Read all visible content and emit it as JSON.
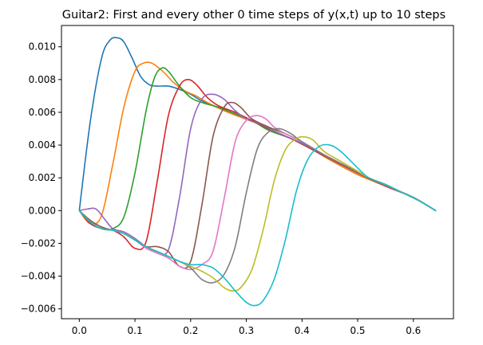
{
  "chart_data": {
    "type": "line",
    "title": "Guitar2: First and every other 0 time steps of y(x,t) up to 10 steps",
    "xlabel": "",
    "ylabel": "",
    "xlim": [
      -0.032,
      0.672
    ],
    "ylim": [
      -0.0066,
      0.0113
    ],
    "x_ticks": [
      0.0,
      0.1,
      0.2,
      0.3,
      0.4,
      0.5,
      0.6
    ],
    "x_tick_labels": [
      "0.0",
      "0.1",
      "0.2",
      "0.3",
      "0.4",
      "0.5",
      "0.6"
    ],
    "y_ticks": [
      -0.006,
      -0.004,
      -0.002,
      0.0,
      0.002,
      0.004,
      0.006,
      0.008,
      0.01
    ],
    "y_tick_labels": [
      "−0.006",
      "−0.004",
      "−0.002",
      "0.000",
      "0.002",
      "0.004",
      "0.006",
      "0.008",
      "0.010"
    ],
    "grid": false,
    "series": [
      {
        "color": "#1f77b4",
        "points": [
          [
            0.0,
            0.0
          ],
          [
            0.02,
            0.0055
          ],
          [
            0.04,
            0.0093
          ],
          [
            0.055,
            0.0104
          ],
          [
            0.068,
            0.01055
          ],
          [
            0.08,
            0.0103
          ],
          [
            0.095,
            0.0093
          ],
          [
            0.11,
            0.0082
          ],
          [
            0.125,
            0.0077
          ],
          [
            0.14,
            0.0076
          ],
          [
            0.16,
            0.0076
          ],
          [
            0.18,
            0.0074
          ],
          [
            0.2,
            0.0071
          ],
          [
            0.22,
            0.0067
          ],
          [
            0.25,
            0.0063
          ],
          [
            0.28,
            0.0059
          ],
          [
            0.3,
            0.0056
          ],
          [
            0.33,
            0.0052
          ],
          [
            0.36,
            0.0047
          ],
          [
            0.4,
            0.0041
          ],
          [
            0.45,
            0.0031
          ],
          [
            0.5,
            0.0022
          ],
          [
            0.55,
            0.0015
          ],
          [
            0.6,
            0.0008
          ],
          [
            0.64,
            0.0
          ]
        ]
      },
      {
        "color": "#ff7f0e",
        "points": [
          [
            0.0,
            0.0
          ],
          [
            0.02,
            -0.0008
          ],
          [
            0.04,
            -0.0003
          ],
          [
            0.06,
            0.0028
          ],
          [
            0.08,
            0.0063
          ],
          [
            0.1,
            0.0085
          ],
          [
            0.115,
            0.009
          ],
          [
            0.13,
            0.009
          ],
          [
            0.15,
            0.0085
          ],
          [
            0.17,
            0.0078
          ],
          [
            0.19,
            0.0073
          ],
          [
            0.21,
            0.007
          ],
          [
            0.23,
            0.0066
          ],
          [
            0.26,
            0.0061
          ],
          [
            0.29,
            0.0057
          ],
          [
            0.32,
            0.0053
          ],
          [
            0.35,
            0.0048
          ],
          [
            0.4,
            0.0041
          ],
          [
            0.45,
            0.0031
          ],
          [
            0.5,
            0.0022
          ],
          [
            0.55,
            0.0015
          ],
          [
            0.6,
            0.0008
          ],
          [
            0.64,
            0.0
          ]
        ]
      },
      {
        "color": "#2ca02c",
        "points": [
          [
            0.0,
            0.0
          ],
          [
            0.02,
            -0.0007
          ],
          [
            0.04,
            -0.0011
          ],
          [
            0.06,
            -0.0011
          ],
          [
            0.08,
            -0.0004
          ],
          [
            0.1,
            0.0023
          ],
          [
            0.12,
            0.0061
          ],
          [
            0.135,
            0.0081
          ],
          [
            0.148,
            0.0087
          ],
          [
            0.16,
            0.0085
          ],
          [
            0.18,
            0.0076
          ],
          [
            0.2,
            0.0069
          ],
          [
            0.22,
            0.0066
          ],
          [
            0.25,
            0.0063
          ],
          [
            0.28,
            0.0059
          ],
          [
            0.31,
            0.0055
          ],
          [
            0.34,
            0.0049
          ],
          [
            0.38,
            0.0044
          ],
          [
            0.42,
            0.0037
          ],
          [
            0.46,
            0.003
          ],
          [
            0.5,
            0.0023
          ],
          [
            0.55,
            0.0015
          ],
          [
            0.6,
            0.0008
          ],
          [
            0.64,
            0.0
          ]
        ]
      },
      {
        "color": "#d62728",
        "points": [
          [
            0.0,
            0.0
          ],
          [
            0.02,
            -0.0008
          ],
          [
            0.04,
            -0.0011
          ],
          [
            0.06,
            -0.0012
          ],
          [
            0.08,
            -0.0016
          ],
          [
            0.1,
            -0.0023
          ],
          [
            0.12,
            -0.0019
          ],
          [
            0.14,
            0.0018
          ],
          [
            0.16,
            0.0058
          ],
          [
            0.18,
            0.0076
          ],
          [
            0.195,
            0.008
          ],
          [
            0.21,
            0.0077
          ],
          [
            0.23,
            0.0069
          ],
          [
            0.25,
            0.0064
          ],
          [
            0.28,
            0.006
          ],
          [
            0.31,
            0.0055
          ],
          [
            0.34,
            0.005
          ],
          [
            0.38,
            0.0044
          ],
          [
            0.42,
            0.0037
          ],
          [
            0.46,
            0.003
          ],
          [
            0.5,
            0.0023
          ],
          [
            0.55,
            0.0015
          ],
          [
            0.6,
            0.0008
          ],
          [
            0.64,
            0.0
          ]
        ]
      },
      {
        "color": "#9467bd",
        "points": [
          [
            0.0,
            0.0
          ],
          [
            0.015,
            0.0001
          ],
          [
            0.03,
            0.0001
          ],
          [
            0.045,
            -0.0005
          ],
          [
            0.06,
            -0.0011
          ],
          [
            0.08,
            -0.0013
          ],
          [
            0.1,
            -0.0017
          ],
          [
            0.12,
            -0.0022
          ],
          [
            0.14,
            -0.0025
          ],
          [
            0.16,
            -0.0024
          ],
          [
            0.18,
            0.0008
          ],
          [
            0.2,
            0.005
          ],
          [
            0.22,
            0.0068
          ],
          [
            0.24,
            0.0071
          ],
          [
            0.26,
            0.0068
          ],
          [
            0.28,
            0.0061
          ],
          [
            0.3,
            0.0056
          ],
          [
            0.33,
            0.0052
          ],
          [
            0.36,
            0.0047
          ],
          [
            0.4,
            0.0041
          ],
          [
            0.44,
            0.0034
          ],
          [
            0.48,
            0.0027
          ],
          [
            0.52,
            0.002
          ],
          [
            0.56,
            0.0014
          ],
          [
            0.6,
            0.0008
          ],
          [
            0.64,
            0.0
          ]
        ]
      },
      {
        "color": "#8c564b",
        "points": [
          [
            0.0,
            0.0
          ],
          [
            0.02,
            -0.0006
          ],
          [
            0.04,
            -0.001
          ],
          [
            0.06,
            -0.0012
          ],
          [
            0.08,
            -0.0014
          ],
          [
            0.1,
            -0.0018
          ],
          [
            0.12,
            -0.0022
          ],
          [
            0.14,
            -0.0022
          ],
          [
            0.16,
            -0.0025
          ],
          [
            0.18,
            -0.0034
          ],
          [
            0.2,
            -0.0031
          ],
          [
            0.22,
            0.0003
          ],
          [
            0.24,
            0.0045
          ],
          [
            0.26,
            0.0063
          ],
          [
            0.275,
            0.0066
          ],
          [
            0.29,
            0.0063
          ],
          [
            0.31,
            0.0056
          ],
          [
            0.34,
            0.0051
          ],
          [
            0.37,
            0.0047
          ],
          [
            0.4,
            0.0042
          ],
          [
            0.44,
            0.0034
          ],
          [
            0.48,
            0.0027
          ],
          [
            0.52,
            0.002
          ],
          [
            0.56,
            0.0014
          ],
          [
            0.6,
            0.0008
          ],
          [
            0.64,
            0.0
          ]
        ]
      },
      {
        "color": "#e377c2",
        "points": [
          [
            0.0,
            0.0
          ],
          [
            0.02,
            -0.0007
          ],
          [
            0.04,
            -0.0011
          ],
          [
            0.06,
            -0.0012
          ],
          [
            0.08,
            -0.0014
          ],
          [
            0.1,
            -0.0018
          ],
          [
            0.12,
            -0.0023
          ],
          [
            0.14,
            -0.0026
          ],
          [
            0.16,
            -0.0029
          ],
          [
            0.18,
            -0.0034
          ],
          [
            0.2,
            -0.0036
          ],
          [
            0.22,
            -0.0033
          ],
          [
            0.24,
            -0.0025
          ],
          [
            0.26,
            0.0007
          ],
          [
            0.28,
            0.0042
          ],
          [
            0.3,
            0.0055
          ],
          [
            0.318,
            0.0058
          ],
          [
            0.335,
            0.0056
          ],
          [
            0.35,
            0.0051
          ],
          [
            0.37,
            0.0047
          ],
          [
            0.4,
            0.0042
          ],
          [
            0.44,
            0.0034
          ],
          [
            0.48,
            0.0027
          ],
          [
            0.52,
            0.002
          ],
          [
            0.56,
            0.0014
          ],
          [
            0.6,
            0.0008
          ],
          [
            0.64,
            0.0
          ]
        ]
      },
      {
        "color": "#7f7f7f",
        "points": [
          [
            0.0,
            0.0
          ],
          [
            0.02,
            -0.0007
          ],
          [
            0.04,
            -0.0011
          ],
          [
            0.06,
            -0.0012
          ],
          [
            0.08,
            -0.0014
          ],
          [
            0.1,
            -0.0018
          ],
          [
            0.12,
            -0.0022
          ],
          [
            0.14,
            -0.0025
          ],
          [
            0.16,
            -0.0028
          ],
          [
            0.18,
            -0.0031
          ],
          [
            0.2,
            -0.0035
          ],
          [
            0.22,
            -0.0042
          ],
          [
            0.24,
            -0.0044
          ],
          [
            0.26,
            -0.0039
          ],
          [
            0.28,
            -0.0022
          ],
          [
            0.3,
            0.0011
          ],
          [
            0.32,
            0.0038
          ],
          [
            0.34,
            0.0048
          ],
          [
            0.36,
            0.005
          ],
          [
            0.38,
            0.0047
          ],
          [
            0.4,
            0.0042
          ],
          [
            0.44,
            0.0034
          ],
          [
            0.48,
            0.0027
          ],
          [
            0.52,
            0.002
          ],
          [
            0.56,
            0.0014
          ],
          [
            0.6,
            0.0008
          ],
          [
            0.64,
            0.0
          ]
        ]
      },
      {
        "color": "#bcbd22",
        "points": [
          [
            0.0,
            0.0
          ],
          [
            0.02,
            -0.0007
          ],
          [
            0.04,
            -0.0011
          ],
          [
            0.06,
            -0.0012
          ],
          [
            0.08,
            -0.0014
          ],
          [
            0.1,
            -0.0018
          ],
          [
            0.12,
            -0.0022
          ],
          [
            0.14,
            -0.0025
          ],
          [
            0.16,
            -0.0028
          ],
          [
            0.18,
            -0.0031
          ],
          [
            0.2,
            -0.0034
          ],
          [
            0.22,
            -0.0037
          ],
          [
            0.24,
            -0.0041
          ],
          [
            0.26,
            -0.0047
          ],
          [
            0.275,
            -0.0049
          ],
          [
            0.29,
            -0.0047
          ],
          [
            0.31,
            -0.0036
          ],
          [
            0.33,
            -0.0012
          ],
          [
            0.35,
            0.0018
          ],
          [
            0.37,
            0.0037
          ],
          [
            0.39,
            0.0044
          ],
          [
            0.405,
            0.0045
          ],
          [
            0.42,
            0.0043
          ],
          [
            0.44,
            0.0036
          ],
          [
            0.47,
            0.003
          ],
          [
            0.5,
            0.0024
          ],
          [
            0.52,
            0.002
          ],
          [
            0.55,
            0.0016
          ],
          [
            0.58,
            0.0011
          ],
          [
            0.61,
            0.0006
          ],
          [
            0.64,
            0.0
          ]
        ]
      },
      {
        "color": "#17becf",
        "points": [
          [
            0.0,
            0.0
          ],
          [
            0.02,
            -0.0007
          ],
          [
            0.04,
            -0.0011
          ],
          [
            0.06,
            -0.0012
          ],
          [
            0.08,
            -0.0014
          ],
          [
            0.1,
            -0.0018
          ],
          [
            0.12,
            -0.0022
          ],
          [
            0.14,
            -0.0025
          ],
          [
            0.16,
            -0.0028
          ],
          [
            0.18,
            -0.0031
          ],
          [
            0.2,
            -0.0033
          ],
          [
            0.22,
            -0.0033
          ],
          [
            0.24,
            -0.0035
          ],
          [
            0.26,
            -0.0041
          ],
          [
            0.28,
            -0.0049
          ],
          [
            0.3,
            -0.0056
          ],
          [
            0.315,
            -0.0058
          ],
          [
            0.33,
            -0.0055
          ],
          [
            0.35,
            -0.0042
          ],
          [
            0.37,
            -0.0018
          ],
          [
            0.39,
            0.0012
          ],
          [
            0.41,
            0.0031
          ],
          [
            0.43,
            0.0039
          ],
          [
            0.45,
            0.004
          ],
          [
            0.47,
            0.0036
          ],
          [
            0.5,
            0.0026
          ],
          [
            0.52,
            0.002
          ],
          [
            0.55,
            0.0016
          ],
          [
            0.58,
            0.0011
          ],
          [
            0.61,
            0.0006
          ],
          [
            0.64,
            0.0
          ]
        ]
      }
    ]
  }
}
